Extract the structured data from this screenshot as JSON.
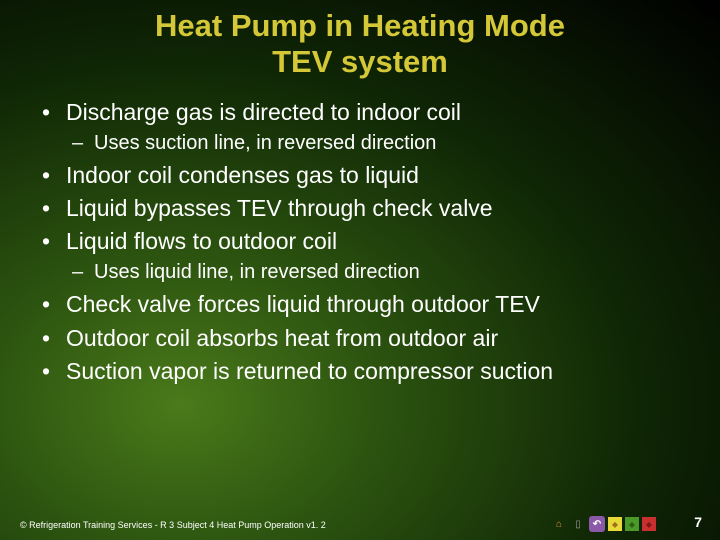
{
  "title_line1": "Heat Pump in Heating Mode",
  "title_line2": "TEV system",
  "bullets": [
    "Discharge gas is directed to indoor coil",
    "Indoor coil condenses gas to liquid",
    "Liquid bypasses TEV through check valve",
    "Liquid flows to outdoor coil",
    "Check valve forces liquid through outdoor TEV",
    "Outdoor coil absorbs heat from outdoor air",
    "Suction vapor is returned to compressor suction"
  ],
  "sub_after_0": "Uses suction line, in reversed direction",
  "sub_after_3": "Uses liquid line, in reversed direction",
  "footer": "© Refrigeration Training Services - R 3 Subject 4 Heat Pump Operation v1. 2",
  "page_number": "7",
  "colors": {
    "title": "#d4c838",
    "text": "#ffffff",
    "bg_inner": "#4a7a1a",
    "bg_outer": "#000000",
    "nav_orange": "#e89038",
    "nav_grey": "#9a9a9a",
    "nav_purple": "#8a5aa8",
    "nav_yellow": "#e8d838",
    "nav_green": "#4a9a2a",
    "nav_red": "#c83030"
  },
  "fonts": {
    "title_size_pt": 24,
    "bullet_size_pt": 18,
    "sub_size_pt": 16,
    "footer_size_pt": 7,
    "pagenum_size_pt": 11
  }
}
